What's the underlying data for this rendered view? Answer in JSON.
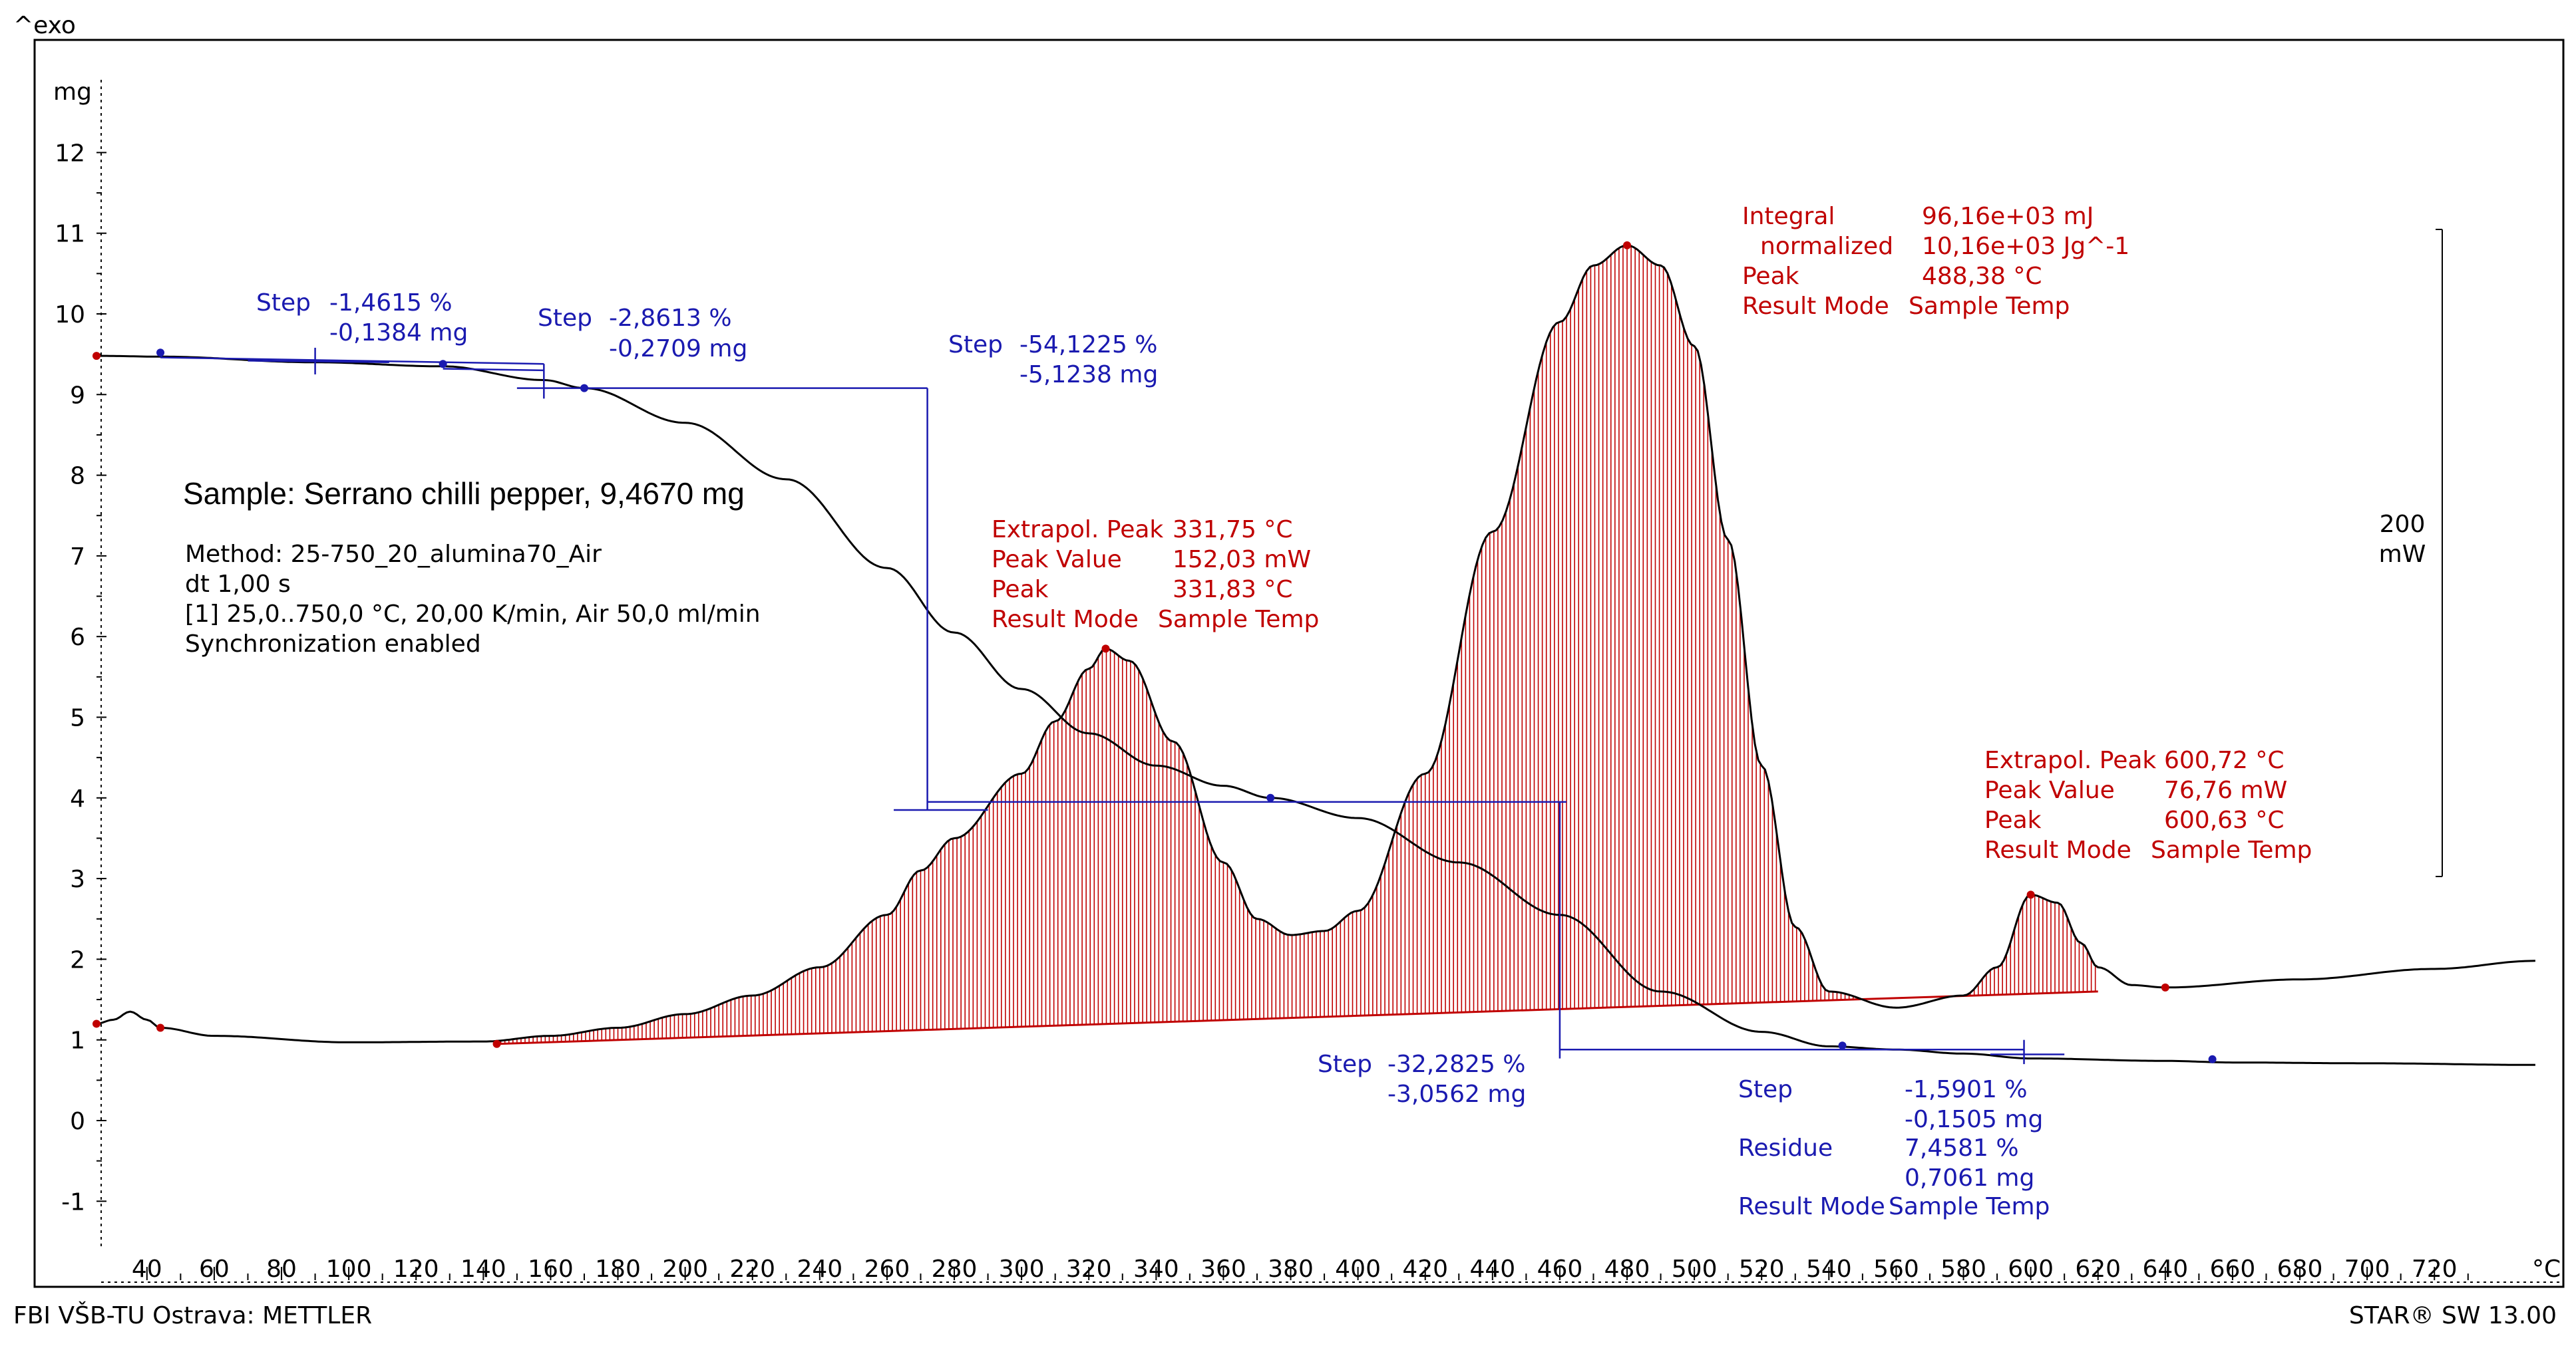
{
  "header": {
    "exo_label": "^exo"
  },
  "footer": {
    "left": "FBI VŠB-TU Ostrava: METTLER",
    "right": "STAR® SW 13.00"
  },
  "axes": {
    "y_unit": "mg",
    "x_unit": "°C",
    "y_ticks": [
      12,
      11,
      10,
      9,
      8,
      7,
      6,
      5,
      4,
      3,
      2,
      1,
      0,
      -1
    ],
    "x_ticks": [
      40,
      60,
      80,
      100,
      120,
      140,
      160,
      180,
      200,
      220,
      240,
      260,
      280,
      300,
      320,
      340,
      360,
      380,
      400,
      420,
      440,
      460,
      480,
      500,
      520,
      540,
      560,
      580,
      600,
      620,
      640,
      660,
      680,
      700,
      720
    ]
  },
  "scale_bar": {
    "value": "200",
    "unit": "mW"
  },
  "sample": {
    "title": "Sample: Serrano chilli pepper, 9,4670 mg",
    "method": "Method: 25-750_20_alumina70_Air",
    "dt": "dt 1,00 s",
    "segment": "[1] 25,0..750,0 °C, 20,00 K/min, Air 50,0 ml/min",
    "sync": "Synchronization enabled"
  },
  "steps": [
    {
      "label": "Step",
      "percent": "-1,4615 %",
      "mass": "-0,1384 mg"
    },
    {
      "label": "Step",
      "percent": "-2,8613 %",
      "mass": "-0,2709 mg"
    },
    {
      "label": "Step",
      "percent": "-54,1225 %",
      "mass": "-5,1238 mg"
    },
    {
      "label": "Step",
      "percent": "-32,2825 %",
      "mass": "-3,0562 mg"
    }
  ],
  "final_step": {
    "step_label": "Step",
    "step_percent": "-1,5901 %",
    "step_mass": "-0,1505 mg",
    "residue_label": "Residue",
    "residue_percent": "7,4581 %",
    "residue_mass": "0,7061 mg",
    "mode_label": "Result Mode",
    "mode_value": "Sample Temp"
  },
  "peaks": {
    "peak1": {
      "rows": [
        {
          "label": "Extrapol. Peak",
          "value": "331,75 °C"
        },
        {
          "label": "Peak Value",
          "value": "152,03 mW"
        },
        {
          "label": "Peak",
          "value": "331,83 °C"
        },
        {
          "label": "Result Mode",
          "value": "Sample Temp"
        }
      ]
    },
    "peak2": {
      "rows": [
        {
          "label": "Integral",
          "value": "96,16e+03 mJ"
        },
        {
          "label": "normalized",
          "value": "10,16e+03 Jg^-1"
        },
        {
          "label": "Peak",
          "value": "488,38 °C"
        },
        {
          "label": "Result Mode",
          "value": "Sample Temp"
        }
      ]
    },
    "peak3": {
      "rows": [
        {
          "label": "Extrapol. Peak",
          "value": "600,72 °C"
        },
        {
          "label": "Peak Value",
          "value": "76,76 mW"
        },
        {
          "label": "Peak",
          "value": "600,63 °C"
        },
        {
          "label": "Result Mode",
          "value": "Sample Temp"
        }
      ]
    }
  },
  "colors": {
    "tga": "#000000",
    "dsc": "#000000",
    "hatch": "#c00000",
    "annot_blue": "#1a1ab0",
    "annot_red": "#c00000"
  },
  "chart_data": {
    "type": "line",
    "title": "",
    "xlabel": "°C",
    "ylabel": "mg",
    "xlim": [
      28,
      750
    ],
    "ylim": [
      -1.5,
      12.8
    ],
    "series": [
      {
        "name": "TGA",
        "x": [
          25,
          44,
          90,
          128,
          158,
          170,
          200,
          230,
          260,
          280,
          300,
          320,
          340,
          360,
          374,
          400,
          430,
          460,
          490,
          520,
          540,
          560,
          580,
          600,
          640,
          660,
          700,
          750
        ],
        "y": [
          9.48,
          9.47,
          9.4,
          9.35,
          9.18,
          9.08,
          8.65,
          7.95,
          6.85,
          6.05,
          5.35,
          4.8,
          4.4,
          4.15,
          4.0,
          3.75,
          3.2,
          2.55,
          1.6,
          1.1,
          0.92,
          0.88,
          0.83,
          0.77,
          0.74,
          0.72,
          0.71,
          0.69
        ]
      },
      {
        "name": "DSC",
        "x": [
          25,
          30,
          35,
          40,
          44,
          60,
          100,
          140,
          160,
          180,
          200,
          220,
          240,
          260,
          270,
          280,
          300,
          310,
          320,
          325,
          332,
          345,
          360,
          370,
          380,
          390,
          400,
          420,
          440,
          460,
          470,
          480,
          490,
          500,
          510,
          520,
          530,
          540,
          560,
          580,
          590,
          600,
          608,
          615,
          620,
          630,
          640,
          680,
          720,
          750
        ],
        "y": [
          1.2,
          1.25,
          1.35,
          1.25,
          1.15,
          1.05,
          0.97,
          0.98,
          1.05,
          1.15,
          1.32,
          1.55,
          1.9,
          2.55,
          3.1,
          3.5,
          4.3,
          4.95,
          5.6,
          5.85,
          5.7,
          4.7,
          3.2,
          2.5,
          2.3,
          2.35,
          2.6,
          4.3,
          7.3,
          9.9,
          10.6,
          10.85,
          10.6,
          9.6,
          7.2,
          4.4,
          2.4,
          1.6,
          1.4,
          1.55,
          1.9,
          2.8,
          2.7,
          2.2,
          1.9,
          1.68,
          1.65,
          1.75,
          1.88,
          1.98
        ]
      },
      {
        "name": "Baseline",
        "x": [
          144,
          620
        ],
        "y": [
          0.95,
          1.6
        ]
      }
    ]
  }
}
